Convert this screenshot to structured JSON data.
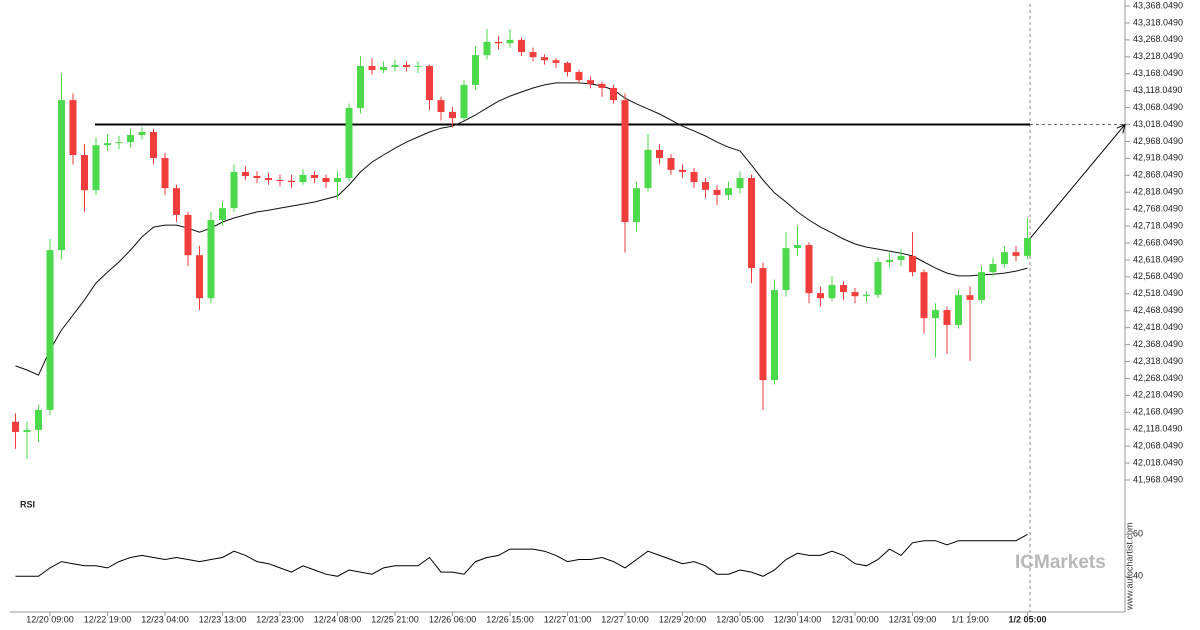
{
  "chart_data": [
    {
      "type": "candlestick",
      "up_color": "#4cd94c",
      "down_color": "#f23d3d",
      "line_color": "#111111",
      "level_color": "#000000",
      "level": 43018.049,
      "ylim": [
        41968.049,
        43368.049
      ],
      "yticks": [
        {
          "value": 41968.049,
          "label": "41,968.0490"
        },
        {
          "value": 42018.049,
          "label": "42,018.0490"
        },
        {
          "value": 42068.049,
          "label": "42,068.0490"
        },
        {
          "value": 42118.049,
          "label": "42,118.0490"
        },
        {
          "value": 42168.049,
          "label": "42,168.0490"
        },
        {
          "value": 42218.049,
          "label": "42,218.0490"
        },
        {
          "value": 42268.049,
          "label": "42,268.0490"
        },
        {
          "value": 42318.049,
          "label": "42,318.0490"
        },
        {
          "value": 42368.049,
          "label": "42,368.0490"
        },
        {
          "value": 42418.049,
          "label": "42,418.0490"
        },
        {
          "value": 42468.049,
          "label": "42,468.0490"
        },
        {
          "value": 42518.049,
          "label": "42,518.0490"
        },
        {
          "value": 42568.049,
          "label": "42,568.0490"
        },
        {
          "value": 42618.049,
          "label": "42,618.0490"
        },
        {
          "value": 42668.049,
          "label": "42,668.0490"
        },
        {
          "value": 42718.049,
          "label": "42,718.0490"
        },
        {
          "value": 42768.049,
          "label": "42,768.0490"
        },
        {
          "value": 42818.049,
          "label": "42,818.0490"
        },
        {
          "value": 42868.049,
          "label": "42,868.0490"
        },
        {
          "value": 42918.049,
          "label": "42,918.0490"
        },
        {
          "value": 42968.049,
          "label": "42,968.0490"
        },
        {
          "value": 43018.049,
          "label": "43,018.0490"
        },
        {
          "value": 43068.049,
          "label": "43,068.0490"
        },
        {
          "value": 43118.049,
          "label": "43,118.0490"
        },
        {
          "value": 43168.049,
          "label": "43,168.0490"
        },
        {
          "value": 43218.049,
          "label": "43,218.0490"
        },
        {
          "value": 43268.049,
          "label": "43,268.0490"
        },
        {
          "value": 43318.049,
          "label": "43,318.0490"
        },
        {
          "value": 43368.049,
          "label": "43,368.0490"
        }
      ],
      "categories": [
        null,
        null,
        null,
        "12/20 09:00",
        null,
        null,
        null,
        null,
        "12/22 19:00",
        null,
        null,
        null,
        null,
        "12/23 04:00",
        null,
        null,
        null,
        null,
        "12/23 13:00",
        null,
        null,
        null,
        null,
        "12/23 23:00",
        null,
        null,
        null,
        null,
        "12/24 08:00",
        null,
        null,
        null,
        null,
        "12/25 21:00",
        null,
        null,
        null,
        null,
        "12/26 06:00",
        null,
        null,
        null,
        null,
        "12/26 15:00",
        null,
        null,
        null,
        null,
        "12/27 01:00",
        null,
        null,
        null,
        null,
        "12/27 10:00",
        null,
        null,
        null,
        null,
        "12/29 20:00",
        null,
        null,
        null,
        null,
        "12/30 05:00",
        null,
        null,
        null,
        null,
        "12/30 14:00",
        null,
        null,
        null,
        null,
        "12/31 00:00",
        null,
        null,
        null,
        null,
        "12/31 09:00",
        null,
        null,
        null,
        null,
        "1/1 19:00",
        null,
        null,
        null,
        null,
        "1/2 05:00"
      ],
      "candles": [
        [
          42140,
          42165,
          42060,
          42110
        ],
        [
          42110,
          42140,
          42030,
          42116
        ],
        [
          42116,
          42190,
          42080,
          42175
        ],
        [
          42175,
          42680,
          42160,
          42647
        ],
        [
          42647,
          43170,
          42620,
          43090
        ],
        [
          43090,
          43110,
          42900,
          42928
        ],
        [
          42928,
          42960,
          42760,
          42824
        ],
        [
          42824,
          42980,
          42810,
          42957
        ],
        [
          42957,
          42990,
          42940,
          42963
        ],
        [
          42963,
          42985,
          42945,
          42966
        ],
        [
          42966,
          43005,
          42950,
          42987
        ],
        [
          42987,
          43010,
          42975,
          42996
        ],
        [
          42996,
          43005,
          42900,
          42919
        ],
        [
          42919,
          42935,
          42810,
          42830
        ],
        [
          42830,
          42840,
          42730,
          42751
        ],
        [
          42751,
          42760,
          42600,
          42632
        ],
        [
          42632,
          42660,
          42470,
          42505
        ],
        [
          42505,
          42760,
          42490,
          42736
        ],
        [
          42736,
          42790,
          42720,
          42771
        ],
        [
          42771,
          42900,
          42760,
          42878
        ],
        [
          42878,
          42895,
          42855,
          42866
        ],
        [
          42866,
          42880,
          42845,
          42860
        ],
        [
          42860,
          42875,
          42840,
          42854
        ],
        [
          42854,
          42870,
          42835,
          42852
        ],
        [
          42852,
          42870,
          42830,
          42848
        ],
        [
          42848,
          42885,
          42840,
          42869
        ],
        [
          42869,
          42880,
          42845,
          42860
        ],
        [
          42860,
          42870,
          42830,
          42848
        ],
        [
          42848,
          42880,
          42800,
          42860
        ],
        [
          42860,
          43080,
          42850,
          43067
        ],
        [
          43067,
          43220,
          43050,
          43191
        ],
        [
          43191,
          43215,
          43165,
          43179
        ],
        [
          43179,
          43205,
          43170,
          43188
        ],
        [
          43188,
          43210,
          43175,
          43194
        ],
        [
          43194,
          43205,
          43175,
          43188
        ],
        [
          43188,
          43205,
          43170,
          43191
        ],
        [
          43191,
          43195,
          43060,
          43090
        ],
        [
          43090,
          43100,
          43030,
          43055
        ],
        [
          43055,
          43070,
          43010,
          43037
        ],
        [
          43037,
          43150,
          43030,
          43135
        ],
        [
          43135,
          43250,
          43120,
          43223
        ],
        [
          43223,
          43300,
          43210,
          43262
        ],
        [
          43262,
          43280,
          43240,
          43258
        ],
        [
          43258,
          43300,
          43245,
          43268
        ],
        [
          43268,
          43275,
          43220,
          43232
        ],
        [
          43232,
          43245,
          43205,
          43217
        ],
        [
          43217,
          43225,
          43195,
          43208
        ],
        [
          43208,
          43215,
          43185,
          43200
        ],
        [
          43200,
          43205,
          43160,
          43173
        ],
        [
          43173,
          43180,
          43140,
          43149
        ],
        [
          43149,
          43160,
          43125,
          43138
        ],
        [
          43138,
          43145,
          43100,
          43126
        ],
        [
          43126,
          43135,
          43080,
          43090
        ],
        [
          43090,
          43110,
          42640,
          42730
        ],
        [
          42730,
          42850,
          42700,
          42830
        ],
        [
          42830,
          42990,
          42820,
          42943
        ],
        [
          42943,
          42960,
          42900,
          42919
        ],
        [
          42919,
          42930,
          42870,
          42884
        ],
        [
          42884,
          42900,
          42860,
          42878
        ],
        [
          42878,
          42890,
          42830,
          42848
        ],
        [
          42848,
          42860,
          42800,
          42825
        ],
        [
          42825,
          42840,
          42780,
          42810
        ],
        [
          42810,
          42850,
          42795,
          42830
        ],
        [
          42830,
          42880,
          42815,
          42860
        ],
        [
          42860,
          42870,
          42550,
          42594
        ],
        [
          42594,
          42610,
          42175,
          42263
        ],
        [
          42263,
          42560,
          42250,
          42529
        ],
        [
          42529,
          42700,
          42510,
          42653
        ],
        [
          42653,
          42720,
          42630,
          42662
        ],
        [
          42662,
          42670,
          42490,
          42520
        ],
        [
          42520,
          42540,
          42480,
          42505
        ],
        [
          42505,
          42570,
          42495,
          42544
        ],
        [
          42544,
          42555,
          42500,
          42523
        ],
        [
          42523,
          42535,
          42490,
          42511
        ],
        [
          42511,
          42525,
          42495,
          42515
        ],
        [
          42515,
          42625,
          42505,
          42612
        ],
        [
          42612,
          42640,
          42595,
          42618
        ],
        [
          42618,
          42650,
          42600,
          42630
        ],
        [
          42630,
          42700,
          42570,
          42582
        ],
        [
          42582,
          42590,
          42400,
          42446
        ],
        [
          42446,
          42490,
          42330,
          42470
        ],
        [
          42470,
          42480,
          42340,
          42426
        ],
        [
          42426,
          42530,
          42415,
          42514
        ],
        [
          42514,
          42540,
          42320,
          42500
        ],
        [
          42500,
          42600,
          42490,
          42582
        ],
        [
          42582,
          42625,
          42570,
          42606
        ],
        [
          42606,
          42660,
          42595,
          42641
        ],
        [
          42641,
          42660,
          42615,
          42630
        ],
        [
          42630,
          42740,
          42620,
          42683
        ]
      ],
      "line_values": [
        42305,
        42293,
        42278,
        42352,
        42411,
        42455,
        42500,
        42550,
        42582,
        42612,
        42647,
        42686,
        42715,
        42721,
        42721,
        42712,
        42700,
        42712,
        42730,
        42742,
        42751,
        42760,
        42765,
        42771,
        42777,
        42783,
        42789,
        42798,
        42807,
        42839,
        42878,
        42907,
        42928,
        42948,
        42966,
        42981,
        42996,
        43007,
        43013,
        43028,
        43046,
        43067,
        43087,
        43102,
        43114,
        43126,
        43135,
        43141,
        43141,
        43141,
        43138,
        43132,
        43120,
        43096,
        43079,
        43064,
        43049,
        43031,
        43013,
        42999,
        42984,
        42966,
        42951,
        42940,
        42898,
        42854,
        42816,
        42789,
        42760,
        42736,
        42715,
        42698,
        42680,
        42665,
        42656,
        42650,
        42644,
        42638,
        42630,
        42612,
        42594,
        42579,
        42571,
        42571,
        42574,
        42576,
        42579,
        42585,
        42594
      ]
    },
    {
      "type": "line",
      "title": "RSI",
      "color": "#000000",
      "ylim": [
        23,
        74
      ],
      "yticks": [
        40,
        60
      ],
      "values": [
        40,
        40,
        40,
        44,
        47,
        46,
        45,
        45,
        44,
        47,
        49,
        50,
        49,
        48,
        49,
        48,
        47,
        48,
        49,
        52,
        50,
        47,
        46,
        44,
        42,
        45,
        43,
        41,
        40,
        43,
        42,
        41,
        44,
        45,
        45,
        45,
        49,
        42,
        42,
        41,
        47,
        49,
        50,
        53,
        53,
        53,
        52,
        50,
        47,
        48,
        48,
        49,
        47,
        44,
        48,
        52,
        50,
        48,
        46,
        47,
        45,
        41,
        41,
        43,
        42,
        40,
        43,
        48,
        51,
        50,
        50,
        52,
        50,
        46,
        45,
        48,
        53,
        50,
        56,
        57,
        57,
        55,
        57,
        57,
        57,
        57,
        57,
        57,
        60
      ]
    }
  ],
  "watermark": "www.autochartist.com",
  "brand": "ICMarkets"
}
